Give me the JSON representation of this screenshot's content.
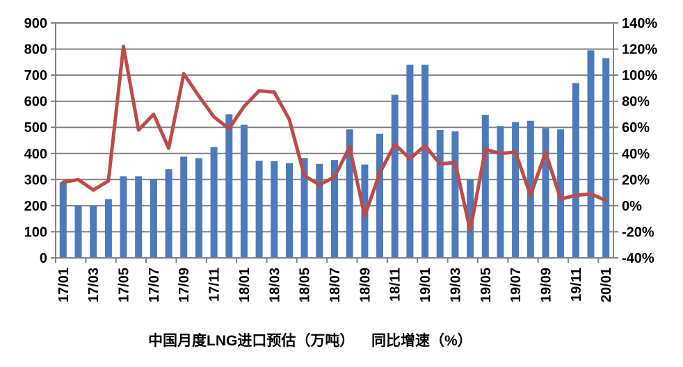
{
  "chart_data": {
    "type": "bar",
    "subtype": "combo-bar-line-dual-axis",
    "categories": [
      "17/01",
      "17/02",
      "17/03",
      "17/04",
      "17/05",
      "17/06",
      "17/07",
      "17/08",
      "17/09",
      "17/10",
      "17/11",
      "17/12",
      "18/01",
      "18/02",
      "18/03",
      "18/04",
      "18/05",
      "18/06",
      "18/07",
      "18/08",
      "18/09",
      "18/10",
      "18/11",
      "18/12",
      "19/01",
      "19/02",
      "19/03",
      "19/04",
      "19/05",
      "19/06",
      "19/07",
      "19/08",
      "19/09",
      "19/10",
      "19/11",
      "19/12",
      "20/01"
    ],
    "x_tick_labels": [
      "17/01",
      "17/03",
      "17/05",
      "17/07",
      "17/09",
      "17/11",
      "18/01",
      "18/03",
      "18/05",
      "18/07",
      "18/09",
      "18/11",
      "19/01",
      "19/03",
      "19/05",
      "19/07",
      "19/09",
      "19/11",
      "20/01"
    ],
    "series": [
      {
        "name": "中国月度LNG进口预估（万吨）",
        "type": "bar",
        "axis": "left",
        "color": "#4B7BBC",
        "values": [
          290,
          200,
          200,
          225,
          313,
          313,
          303,
          340,
          388,
          382,
          425,
          550,
          510,
          372,
          370,
          363,
          383,
          360,
          375,
          492,
          358,
          475,
          625,
          740,
          740,
          490,
          485,
          300,
          548,
          505,
          520,
          525,
          497,
          492,
          670,
          795,
          765
        ]
      },
      {
        "name": "同比增速（%）",
        "type": "line",
        "axis": "right",
        "color": "#BE4B48",
        "values": [
          18,
          20,
          12,
          19,
          122,
          58,
          70,
          44,
          101,
          84,
          68,
          59,
          76,
          88,
          87,
          66,
          23,
          16,
          22,
          45,
          -8,
          25,
          47,
          36,
          46,
          32,
          33,
          -19,
          43,
          40,
          41,
          8,
          41,
          5,
          8,
          9,
          4
        ]
      }
    ],
    "left_axis": {
      "min": 0,
      "max": 900,
      "step": 100,
      "tick_labels": [
        "900",
        "800",
        "700",
        "600",
        "500",
        "400",
        "300",
        "200",
        "100",
        "0"
      ]
    },
    "right_axis": {
      "min": -40,
      "max": 140,
      "step": 20,
      "tick_labels": [
        "140%",
        "120%",
        "100%",
        "80%",
        "60%",
        "40%",
        "20%",
        "0%",
        "-20%",
        "-40%"
      ]
    },
    "grid": true,
    "legend_position": "bottom",
    "title": "",
    "xlabel": "",
    "ylabel": ""
  },
  "colors": {
    "bar": "#4B7BBC",
    "line": "#BE4B48",
    "grid": "#828282",
    "axis": "#828282",
    "text": "#000000",
    "background": "#FFFFFF"
  }
}
